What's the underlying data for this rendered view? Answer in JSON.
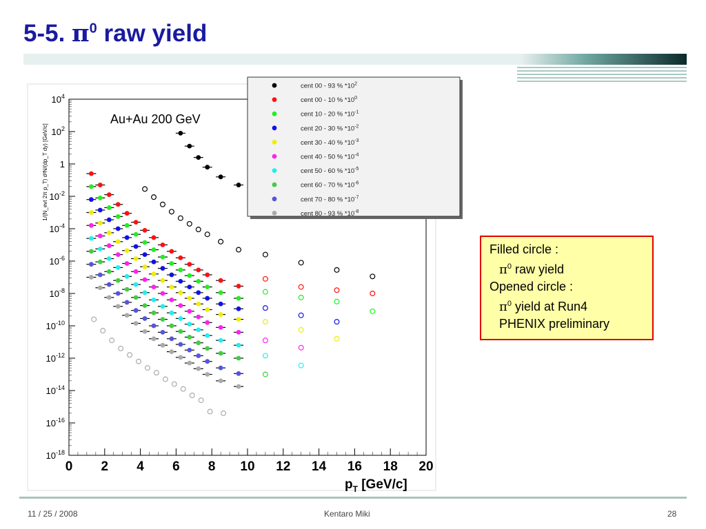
{
  "slide": {
    "title_prefix": "5-5.",
    "title_pi": "π",
    "title_sup": "0",
    "title_rest": "raw yield",
    "footer_date": "11 / 25 / 2008",
    "footer_author": "Kentaro Miki",
    "footer_page": "28",
    "colors": {
      "title": "#1a1aa0",
      "bar_dark": "#0b3a3a",
      "bar_light": "#e6f0ee"
    }
  },
  "note": {
    "line1": "Filled circle :",
    "line2_pi": "π",
    "line2_sup": "0",
    "line2_text": " raw yield",
    "line3": "Opened circle :",
    "line4_pi": "π",
    "line4_sup": "0",
    "line4_text": " yield at Run4",
    "line5": "PHENIX preliminary"
  },
  "chart_data": {
    "type": "scatter",
    "annotation": "Au+Au 200 GeV",
    "xlabel_main": "p",
    "xlabel_sub": "T",
    "xlabel_unit": " [GeV/c]",
    "ylabel": "1/(N_evt 2π p_T) d²N/(dp_T dy) [GeV/c]",
    "yscale": "log",
    "xlim": [
      0,
      20
    ],
    "ylim": [
      -18,
      4
    ],
    "x_ticks": [
      0,
      2,
      4,
      6,
      8,
      10,
      12,
      14,
      16,
      18,
      20
    ],
    "y_ticks": [
      {
        "exp": 4,
        "label": "10",
        "sup": "4"
      },
      {
        "exp": 2,
        "label": "10",
        "sup": "2"
      },
      {
        "exp": 0,
        "label": "1",
        "sup": ""
      },
      {
        "exp": -2,
        "label": "10",
        "sup": "-2"
      },
      {
        "exp": -4,
        "label": "10",
        "sup": "-4"
      },
      {
        "exp": -6,
        "label": "10",
        "sup": "-6"
      },
      {
        "exp": -8,
        "label": "10",
        "sup": "-8"
      },
      {
        "exp": -10,
        "label": "10",
        "sup": "-10"
      },
      {
        "exp": -12,
        "label": "10",
        "sup": "-12"
      },
      {
        "exp": -14,
        "label": "10",
        "sup": "-14"
      },
      {
        "exp": -16,
        "label": "10",
        "sup": "-16"
      },
      {
        "exp": -18,
        "label": "10",
        "sup": "-18"
      }
    ],
    "legend_placement": "top-right",
    "filled_x": [
      1.25,
      1.75,
      2.25,
      2.75,
      3.25,
      3.75,
      4.25,
      4.75,
      5.25,
      5.75,
      6.25,
      6.75,
      7.25,
      7.75,
      8.5,
      9.5
    ],
    "series": [
      {
        "name": "cent 00 - 93 % *10",
        "sup": "2",
        "color": "#000000",
        "filled_log": [
          1.9,
          1.1,
          0.4,
          -0.2,
          -0.8,
          -1.3
        ],
        "open_x": [
          4.25,
          4.75,
          5.25,
          5.75,
          6.25,
          6.75,
          7.25,
          7.75,
          8.5,
          9.5,
          11,
          13,
          15,
          17
        ],
        "open_log": [
          -1.55,
          -2.05,
          -2.5,
          -2.95,
          -3.35,
          -3.7,
          -4.05,
          -4.35,
          -4.8,
          -5.3,
          -5.6,
          -6.1,
          -6.55,
          -6.95
        ]
      },
      {
        "name": "cent 00 - 10 % *10",
        "sup": "0",
        "color": "#ff1010",
        "filled_log": [
          -0.6,
          -1.3,
          -1.9,
          -2.5,
          -3.05,
          -3.6,
          -4.1,
          -4.55,
          -5.0,
          -5.4,
          -5.8,
          -6.2,
          -6.55,
          -6.85,
          -7.2,
          -7.55
        ],
        "open_x": [
          11,
          13,
          15,
          17
        ],
        "open_log": [
          -7.1,
          -7.6,
          -7.8,
          -8.0
        ]
      },
      {
        "name": "cent 10 - 20 % *10",
        "sup": "-1",
        "color": "#22ee22",
        "filled_log": [
          -1.4,
          -2.1,
          -2.7,
          -3.25,
          -3.8,
          -4.35,
          -4.85,
          -5.3,
          -5.75,
          -6.15,
          -6.55,
          -6.9,
          -7.25,
          -7.6,
          -7.95,
          -8.3
        ],
        "open_x": [
          11,
          13,
          15,
          17
        ],
        "open_log": [
          -7.9,
          -8.25,
          -8.5,
          -9.1
        ]
      },
      {
        "name": "cent 20 - 30 % *10",
        "sup": "-2",
        "color": "#1010ee",
        "filled_log": [
          -2.2,
          -2.85,
          -3.45,
          -4.0,
          -4.55,
          -5.1,
          -5.6,
          -6.05,
          -6.45,
          -6.85,
          -7.25,
          -7.6,
          -7.95,
          -8.3,
          -8.65,
          -8.95
        ],
        "open_x": [
          11,
          13,
          15
        ],
        "open_log": [
          -8.9,
          -9.35,
          -9.75
        ]
      },
      {
        "name": "cent 30 - 40 % *10",
        "sup": "-3",
        "color": "#eeee00",
        "filled_log": [
          -3.0,
          -3.65,
          -4.25,
          -4.8,
          -5.35,
          -5.85,
          -6.35,
          -6.8,
          -7.2,
          -7.6,
          -7.95,
          -8.3,
          -8.65,
          -9.0,
          -9.3,
          -9.6
        ],
        "open_x": [
          11,
          13,
          15
        ],
        "open_log": [
          -9.75,
          -10.25,
          -10.8
        ]
      },
      {
        "name": "cent 40 - 50 % *10",
        "sup": "-4",
        "color": "#ff22ee",
        "filled_log": [
          -3.8,
          -4.45,
          -5.05,
          -5.6,
          -6.15,
          -6.65,
          -7.15,
          -7.6,
          -8.0,
          -8.4,
          -8.75,
          -9.1,
          -9.45,
          -9.8,
          -10.1,
          -10.4
        ],
        "open_x": [
          11,
          13
        ],
        "open_log": [
          -10.9,
          -11.35
        ]
      },
      {
        "name": "cent 50 - 60 % *10",
        "sup": "-5",
        "color": "#22eeee",
        "filled_log": [
          -4.6,
          -5.25,
          -5.85,
          -6.4,
          -6.95,
          -7.45,
          -7.95,
          -8.4,
          -8.8,
          -9.2,
          -9.55,
          -9.9,
          -10.25,
          -10.6,
          -10.9,
          -11.2
        ],
        "open_x": [
          11,
          13
        ],
        "open_log": [
          -11.85,
          -12.45
        ]
      },
      {
        "name": "cent 60 - 70 % *10",
        "sup": "-6",
        "color": "#44cc44",
        "filled_log": [
          -5.4,
          -6.05,
          -6.65,
          -7.2,
          -7.75,
          -8.25,
          -8.75,
          -9.2,
          -9.6,
          -10.0,
          -10.35,
          -10.7,
          -11.05,
          -11.4,
          -11.7,
          -12.0
        ],
        "open_x": [
          11
        ],
        "open_log": [
          -13.0
        ]
      },
      {
        "name": "cent 70 - 80 % *10",
        "sup": "-7",
        "color": "#5555dd",
        "filled_log": [
          -6.2,
          -6.85,
          -7.45,
          -8.0,
          -8.55,
          -9.05,
          -9.55,
          -10.0,
          -10.4,
          -10.8,
          -11.15,
          -11.5,
          -11.85,
          -12.2,
          -12.6,
          -12.95
        ]
      },
      {
        "name": "cent 80 - 93 % *10",
        "sup": "-8",
        "color": "#aaaaaa",
        "filled_log": [
          -7.0,
          -7.65,
          -8.25,
          -8.8,
          -9.35,
          -9.85,
          -10.35,
          -10.8,
          -11.2,
          -11.6,
          -11.95,
          -12.3,
          -12.65,
          -13.0,
          -13.4,
          -13.75
        ],
        "open_log_sparse": [
          -9.6,
          -10.3,
          -10.9,
          -11.4,
          -11.8,
          -12.2,
          -12.6,
          -12.9,
          -13.3,
          -13.6,
          -13.9,
          -14.3,
          -14.6,
          -15.3,
          -15.4
        ]
      }
    ]
  }
}
